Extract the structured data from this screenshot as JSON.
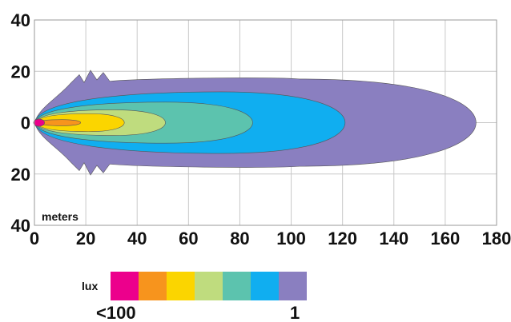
{
  "chart_data": {
    "type": "heatmap",
    "xlabel": "meters",
    "xlim": [
      0,
      180
    ],
    "ylim": [
      -40,
      40
    ],
    "x_ticks": [
      "0",
      "20",
      "40",
      "60",
      "80",
      "100",
      "120",
      "140",
      "160",
      "180"
    ],
    "y_ticks": [
      "40",
      "20",
      "0",
      "20",
      "40"
    ],
    "grid": true,
    "contours": [
      {
        "level": "1",
        "color": "#8a7fc0",
        "reach_m": 172,
        "half_width_m": 17
      },
      {
        "level": "2",
        "color": "#10aef0",
        "reach_m": 121,
        "half_width_m": 12
      },
      {
        "level": "3",
        "color": "#5cc3ae",
        "reach_m": 85,
        "half_width_m": 8
      },
      {
        "level": "4",
        "color": "#bfdc7e",
        "reach_m": 51,
        "half_width_m": 5
      },
      {
        "level": "5",
        "color": "#fbd500",
        "reach_m": 35,
        "half_width_m": 3.5
      },
      {
        "level": "6",
        "color": "#f7941d",
        "reach_m": 18,
        "half_width_m": 1.2
      },
      {
        "level": "7",
        "color": "#ec008c",
        "reach_m": 3,
        "half_width_m": 0.8
      }
    ],
    "legend": {
      "title": "lux",
      "min_label": "<100",
      "max_label": "1",
      "colors": [
        "#ec008c",
        "#f7941d",
        "#fbd500",
        "#bfdc7e",
        "#5cc3ae",
        "#10aef0",
        "#8a7fc0"
      ]
    }
  }
}
